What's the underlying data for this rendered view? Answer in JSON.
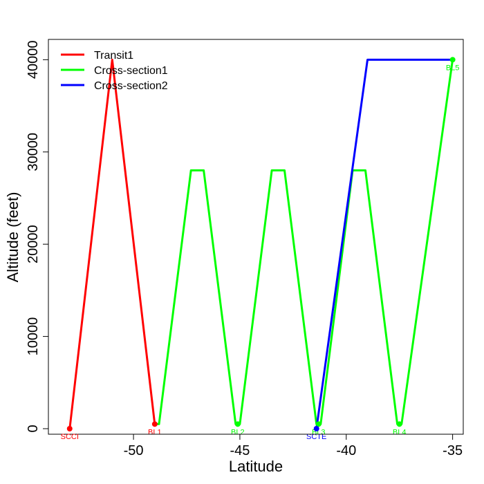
{
  "chart_data": {
    "type": "line",
    "xlabel": "Latitude",
    "ylabel": "Altitude (feet)",
    "xlim": [
      -54,
      -34.5
    ],
    "ylim": [
      -600,
      42200
    ],
    "x_ticks": [
      -50,
      -45,
      -40,
      -35
    ],
    "x_tick_labels": [
      "-50",
      "-45",
      "-40",
      "-35"
    ],
    "y_ticks": [
      0,
      10000,
      20000,
      30000,
      40000
    ],
    "y_tick_labels": [
      "0",
      "10000",
      "20000",
      "30000",
      "40000"
    ],
    "legend_position": "top-left",
    "grid": false,
    "series": [
      {
        "name": "Transit1",
        "color": "#ff0000",
        "points": [
          [
            -53.0,
            0
          ],
          [
            -51.0,
            40000
          ],
          [
            -49.0,
            500
          ]
        ]
      },
      {
        "name": "Cross-section1",
        "color": "#00ff00",
        "points": [
          [
            -49.0,
            500
          ],
          [
            -48.8,
            500
          ],
          [
            -47.3,
            28000
          ],
          [
            -46.7,
            28000
          ],
          [
            -45.2,
            500
          ],
          [
            -45.0,
            500
          ],
          [
            -43.5,
            28000
          ],
          [
            -42.9,
            28000
          ],
          [
            -41.4,
            500
          ],
          [
            -41.2,
            500
          ],
          [
            -39.7,
            28000
          ],
          [
            -39.1,
            28000
          ],
          [
            -37.6,
            500
          ],
          [
            -37.4,
            500
          ],
          [
            -35.0,
            40000
          ]
        ]
      },
      {
        "name": "Cross-section2",
        "color": "#0000ff",
        "points": [
          [
            -41.4,
            0
          ],
          [
            -39.0,
            40000
          ],
          [
            -35.0,
            40000
          ]
        ]
      }
    ],
    "point_labels": [
      {
        "text": "SCCI",
        "x": -53.0,
        "y": 0,
        "color": "#ff0000"
      },
      {
        "text": "BL1",
        "x": -49.0,
        "y": 500,
        "color": "#ff0000"
      },
      {
        "text": "BL2",
        "x": -45.1,
        "y": 500,
        "color": "#00ff00"
      },
      {
        "text": "BL3",
        "x": -41.3,
        "y": 500,
        "color": "#00ff00"
      },
      {
        "text": "SCTE",
        "x": -41.4,
        "y": 0,
        "color": "#0000ff"
      },
      {
        "text": "BL4",
        "x": -37.5,
        "y": 500,
        "color": "#00ff00"
      },
      {
        "text": "BL5",
        "x": -35.0,
        "y": 40000,
        "color": "#00ff00"
      }
    ]
  }
}
